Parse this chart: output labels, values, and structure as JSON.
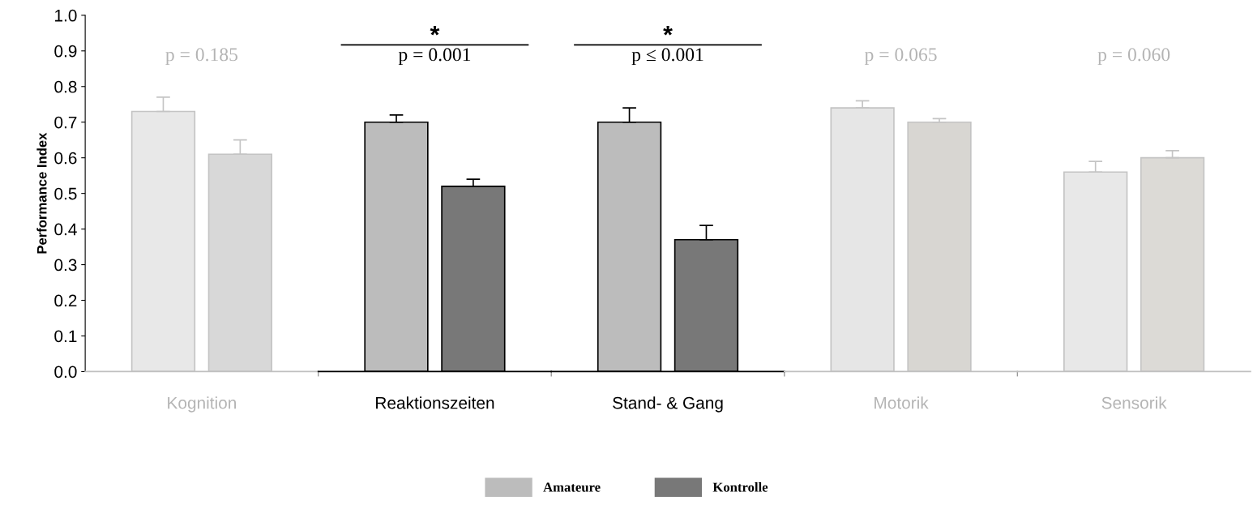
{
  "chart_data": {
    "type": "bar",
    "ylabel": "Performance Index",
    "categories": [
      "Kognition",
      "Reaktionszeiten",
      "Stand- & Gang",
      "Motorik",
      "Sensorik"
    ],
    "series": [
      {
        "name": "Amateure",
        "color": "#bcbcbc",
        "colors": [
          "#e8e8e8",
          "#bcbcbc",
          "#bcbcbc",
          "#e6e6e6",
          "#e8e8e8"
        ],
        "values": [
          0.73,
          0.7,
          0.7,
          0.74,
          0.56
        ],
        "errors": [
          [
            0.73,
            0.77
          ],
          [
            0.7,
            0.72
          ],
          [
            0.7,
            0.74
          ],
          [
            0.74,
            0.76
          ],
          [
            0.56,
            0.59
          ]
        ]
      },
      {
        "name": "Kontrolle",
        "color": "#787878",
        "colors": [
          "#d8d8d8",
          "#787878",
          "#787878",
          "#d8d6d2",
          "#dcdad6"
        ],
        "values": [
          0.61,
          0.52,
          0.37,
          0.7,
          0.6
        ],
        "errors": [
          [
            0.61,
            0.65
          ],
          [
            0.52,
            0.54
          ],
          [
            0.37,
            0.41
          ],
          [
            0.7,
            0.71
          ],
          [
            0.6,
            0.62
          ]
        ]
      }
    ],
    "annotations": [
      "p = 0.185",
      "p = 0.001",
      "p ≤ 0.001",
      "p = 0.065",
      "p = 0.060",
      "*",
      "*"
    ],
    "ylim": [
      0,
      1.0
    ],
    "yticks": [
      {
        "value": 0,
        "label": "0.0"
      },
      {
        "value": 0.1,
        "label": "0.1"
      },
      {
        "value": 0.2,
        "label": "0.2"
      },
      {
        "value": 0.3,
        "label": "0.3"
      },
      {
        "value": 0.4,
        "label": "0.4"
      },
      {
        "value": 0.5,
        "label": "0.5"
      },
      {
        "value": 0.6,
        "label": "0.6"
      },
      {
        "value": 0.7,
        "label": "0.7"
      },
      {
        "value": 0.8,
        "label": "0.8"
      },
      {
        "value": 0.9,
        "label": "0.9"
      },
      {
        "value": 1.0,
        "label": "1.0"
      }
    ],
    "grid": false,
    "legend": "bottom"
  }
}
